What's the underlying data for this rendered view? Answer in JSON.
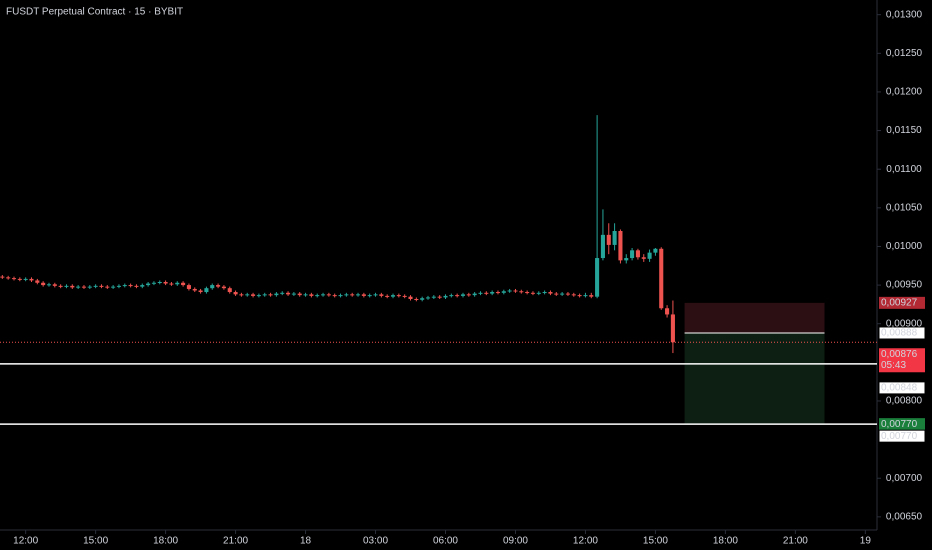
{
  "chart_data": {
    "type": "candlestick",
    "title": "FUSDT Perpetual Contract · 15 · BYBIT",
    "up_color": "#26a69a",
    "down_color": "#ef5350",
    "grid": false,
    "x": [
      11,
      11.25,
      11.5,
      11.75,
      12,
      12.25,
      12.5,
      12.75,
      13,
      13.25,
      13.5,
      13.75,
      14,
      14.25,
      14.5,
      14.75,
      15,
      15.25,
      15.5,
      15.75,
      16,
      16.25,
      16.5,
      16.75,
      17,
      17.25,
      17.5,
      17.75,
      18,
      18.25,
      18.5,
      18.75,
      19,
      19.25,
      19.5,
      19.75,
      20,
      20.25,
      20.5,
      20.75,
      21,
      21.25,
      21.5,
      21.75,
      22,
      22.25,
      22.5,
      22.75,
      23,
      23.25,
      23.5,
      23.75,
      24,
      24.25,
      24.5,
      24.75,
      25,
      25.25,
      25.5,
      25.75,
      26,
      26.25,
      26.5,
      26.75,
      27,
      27.25,
      27.5,
      27.75,
      28,
      28.25,
      28.5,
      28.75,
      29,
      29.25,
      29.5,
      29.75,
      30,
      30.25,
      30.5,
      30.75,
      31,
      31.25,
      31.5,
      31.75,
      32,
      32.25,
      32.5,
      32.75,
      33,
      33.25,
      33.5,
      33.75,
      34,
      34.25,
      34.5,
      34.75,
      35,
      35.25,
      35.5,
      35.75,
      36,
      36.25,
      36.5,
      36.75,
      37,
      37.25,
      37.5,
      37.75,
      38,
      38.25,
      38.5,
      38.75,
      39,
      39.25,
      39.5,
      39.75
    ],
    "open": [
      0.00961,
      0.0096,
      0.00959,
      0.00958,
      0.00957,
      0.00958,
      0.00956,
      0.00953,
      0.0095,
      0.00951,
      0.00949,
      0.00948,
      0.00949,
      0.00947,
      0.00948,
      0.00947,
      0.00948,
      0.00949,
      0.00948,
      0.00947,
      0.00948,
      0.00949,
      0.0095,
      0.00949,
      0.00948,
      0.0095,
      0.00952,
      0.00953,
      0.00954,
      0.00952,
      0.00951,
      0.00953,
      0.0095,
      0.00945,
      0.00943,
      0.00941,
      0.00946,
      0.0095,
      0.00948,
      0.00946,
      0.00941,
      0.00938,
      0.00937,
      0.00938,
      0.00936,
      0.00937,
      0.00938,
      0.00937,
      0.00939,
      0.0094,
      0.00938,
      0.00939,
      0.00937,
      0.00938,
      0.00936,
      0.00937,
      0.00938,
      0.00937,
      0.00936,
      0.00937,
      0.00938,
      0.00937,
      0.00938,
      0.00936,
      0.00937,
      0.00938,
      0.00936,
      0.00935,
      0.00937,
      0.00936,
      0.00935,
      0.00932,
      0.00931,
      0.00933,
      0.00934,
      0.00935,
      0.00934,
      0.00936,
      0.00937,
      0.00936,
      0.00938,
      0.00937,
      0.00939,
      0.0094,
      0.00939,
      0.00941,
      0.0094,
      0.00942,
      0.00943,
      0.00942,
      0.00941,
      0.0094,
      0.00939,
      0.0094,
      0.00941,
      0.00939,
      0.00938,
      0.00939,
      0.00938,
      0.00937,
      0.00936,
      0.00937,
      0.00935,
      0.00985,
      0.01015,
      0.01002,
      0.0102,
      0.00982,
      0.00985,
      0.00995,
      0.00986,
      0.00984,
      0.00992,
      0.00997,
      0.0092,
      0.00912
    ],
    "high": [
      0.00963,
      0.00962,
      0.00961,
      0.0096,
      0.0096,
      0.0096,
      0.00958,
      0.00955,
      0.00953,
      0.00953,
      0.00951,
      0.00951,
      0.00951,
      0.0095,
      0.0095,
      0.0095,
      0.00951,
      0.00951,
      0.0095,
      0.0095,
      0.00951,
      0.00952,
      0.00952,
      0.00951,
      0.00952,
      0.00954,
      0.00955,
      0.00956,
      0.00956,
      0.00954,
      0.00955,
      0.00955,
      0.00952,
      0.00947,
      0.00945,
      0.00948,
      0.00952,
      0.00952,
      0.0095,
      0.00948,
      0.00943,
      0.0094,
      0.0094,
      0.0094,
      0.00939,
      0.0094,
      0.0094,
      0.00941,
      0.00942,
      0.00942,
      0.00941,
      0.00941,
      0.0094,
      0.0094,
      0.00939,
      0.0094,
      0.0094,
      0.00939,
      0.00939,
      0.0094,
      0.0094,
      0.0094,
      0.0094,
      0.00939,
      0.0094,
      0.0094,
      0.00938,
      0.00939,
      0.00939,
      0.00938,
      0.00937,
      0.00934,
      0.00935,
      0.00936,
      0.00937,
      0.00937,
      0.00938,
      0.00939,
      0.00939,
      0.0094,
      0.0094,
      0.00941,
      0.00942,
      0.00942,
      0.00943,
      0.00943,
      0.00944,
      0.00945,
      0.00945,
      0.00944,
      0.00943,
      0.00942,
      0.00942,
      0.00943,
      0.00943,
      0.00941,
      0.00941,
      0.00941,
      0.0094,
      0.00939,
      0.0094,
      0.0094,
      0.0117,
      0.01048,
      0.0103,
      0.0103,
      0.01022,
      0.0099,
      0.00998,
      0.00997,
      0.0099,
      0.00996,
      0.00998,
      0.00999,
      0.00924,
      0.0093
    ],
    "low": [
      0.00958,
      0.00957,
      0.00956,
      0.00955,
      0.00955,
      0.00954,
      0.00951,
      0.00948,
      0.00948,
      0.00947,
      0.00946,
      0.00946,
      0.00945,
      0.00945,
      0.00945,
      0.00945,
      0.00946,
      0.00946,
      0.00945,
      0.00945,
      0.00946,
      0.00947,
      0.00947,
      0.00946,
      0.00946,
      0.00948,
      0.0095,
      0.00951,
      0.0095,
      0.00949,
      0.00949,
      0.00948,
      0.00943,
      0.00941,
      0.00939,
      0.00939,
      0.00944,
      0.00946,
      0.00944,
      0.00939,
      0.00936,
      0.00935,
      0.00935,
      0.00934,
      0.00934,
      0.00935,
      0.00935,
      0.00935,
      0.00937,
      0.00936,
      0.00936,
      0.00935,
      0.00935,
      0.00934,
      0.00934,
      0.00935,
      0.00935,
      0.00934,
      0.00934,
      0.00935,
      0.00935,
      0.00935,
      0.00934,
      0.00934,
      0.00935,
      0.00934,
      0.00933,
      0.00933,
      0.00934,
      0.00933,
      0.0093,
      0.00929,
      0.00929,
      0.00931,
      0.00932,
      0.00932,
      0.00932,
      0.00934,
      0.00934,
      0.00934,
      0.00935,
      0.00935,
      0.00937,
      0.00937,
      0.00937,
      0.00938,
      0.00938,
      0.0094,
      0.0094,
      0.00939,
      0.00938,
      0.00937,
      0.00937,
      0.00938,
      0.00937,
      0.00936,
      0.00936,
      0.00936,
      0.00935,
      0.00934,
      0.00934,
      0.00933,
      0.00933,
      0.00982,
      0.0099,
      0.00995,
      0.00978,
      0.00978,
      0.00982,
      0.00983,
      0.0098,
      0.0098,
      0.00988,
      0.00918,
      0.00908,
      0.00862
    ],
    "close": [
      0.0096,
      0.00959,
      0.00958,
      0.00957,
      0.00958,
      0.00956,
      0.00953,
      0.0095,
      0.00951,
      0.00949,
      0.00948,
      0.00949,
      0.00947,
      0.00948,
      0.00947,
      0.00948,
      0.00949,
      0.00948,
      0.00947,
      0.00948,
      0.00949,
      0.0095,
      0.00949,
      0.00948,
      0.0095,
      0.00952,
      0.00953,
      0.00954,
      0.00952,
      0.00951,
      0.00953,
      0.0095,
      0.00945,
      0.00943,
      0.00941,
      0.00946,
      0.0095,
      0.00948,
      0.00946,
      0.00941,
      0.00938,
      0.00937,
      0.00938,
      0.00936,
      0.00937,
      0.00938,
      0.00937,
      0.00939,
      0.0094,
      0.00938,
      0.00939,
      0.00937,
      0.00938,
      0.00936,
      0.00937,
      0.00938,
      0.00937,
      0.00936,
      0.00937,
      0.00938,
      0.00937,
      0.00938,
      0.00936,
      0.00937,
      0.00938,
      0.00936,
      0.00935,
      0.00937,
      0.00936,
      0.00935,
      0.00932,
      0.00931,
      0.00933,
      0.00934,
      0.00935,
      0.00934,
      0.00936,
      0.00937,
      0.00936,
      0.00938,
      0.00937,
      0.00939,
      0.0094,
      0.00939,
      0.00941,
      0.0094,
      0.00942,
      0.00943,
      0.00942,
      0.00941,
      0.0094,
      0.00939,
      0.0094,
      0.00941,
      0.00939,
      0.00938,
      0.00939,
      0.00938,
      0.00937,
      0.00936,
      0.00937,
      0.00935,
      0.00985,
      0.01015,
      0.01002,
      0.0102,
      0.00982,
      0.00985,
      0.00995,
      0.00986,
      0.00984,
      0.00992,
      0.00997,
      0.0092,
      0.00912,
      0.00876
    ],
    "xlim": [
      10.9,
      48.5
    ],
    "xticks": [
      {
        "value": 12,
        "label": "12:00"
      },
      {
        "value": 15,
        "label": "15:00"
      },
      {
        "value": 18,
        "label": "18:00"
      },
      {
        "value": 21,
        "label": "21:00"
      },
      {
        "value": 24,
        "label": "18"
      },
      {
        "value": 27,
        "label": "03:00"
      },
      {
        "value": 30,
        "label": "06:00"
      },
      {
        "value": 33,
        "label": "09:00"
      },
      {
        "value": 36,
        "label": "12:00"
      },
      {
        "value": 39,
        "label": "15:00"
      },
      {
        "value": 42,
        "label": "18:00"
      },
      {
        "value": 45,
        "label": "21:00"
      },
      {
        "value": 48,
        "label": "19"
      }
    ],
    "ylim": [
      0.00633,
      0.01319
    ],
    "yticks": [
      {
        "value": 0.0065,
        "label": "0,00650"
      },
      {
        "value": 0.007,
        "label": "0,00700"
      },
      {
        "value": 0.008,
        "label": "0,00800"
      },
      {
        "value": 0.009,
        "label": "0,00900"
      },
      {
        "value": 0.0095,
        "label": "0,00950"
      },
      {
        "value": 0.01,
        "label": "0,01000"
      },
      {
        "value": 0.0105,
        "label": "0,01050"
      },
      {
        "value": 0.011,
        "label": "0,01100"
      },
      {
        "value": 0.0115,
        "label": "0,01150"
      },
      {
        "value": 0.012,
        "label": "0,01200"
      },
      {
        "value": 0.0125,
        "label": "0,01250"
      },
      {
        "value": 0.013,
        "label": "0,01300"
      }
    ],
    "price_lines": [
      {
        "value": 0.00848,
        "label": "0,00848"
      },
      {
        "value": 0.0077,
        "label": "0,00770"
      }
    ],
    "position": {
      "x_start": 40.25,
      "x_end": 46.25,
      "stop": {
        "value": 0.00927,
        "label": "0,00927"
      },
      "entry": {
        "value": 0.00888,
        "label": "0,00888"
      },
      "target": {
        "value": 0.0077,
        "label": "0,00770"
      }
    },
    "last_price": {
      "value": 0.00876,
      "label": "0,00876",
      "countdown": "05:43"
    }
  }
}
